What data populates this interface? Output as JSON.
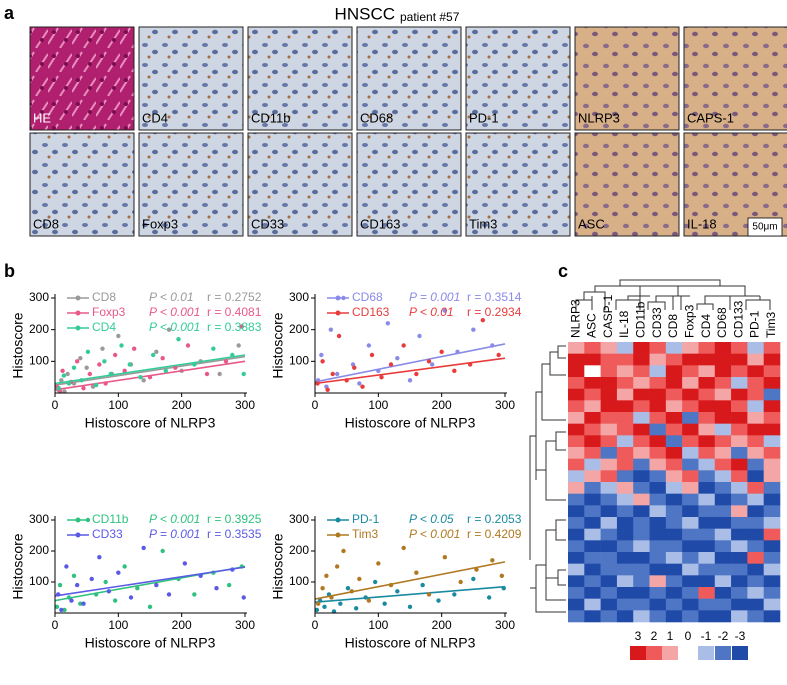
{
  "figure_labels": {
    "a": "a",
    "b": "b",
    "c": "c"
  },
  "panel_a": {
    "title": "HNSCC",
    "subtitle": "patient #57",
    "tiles": [
      "HE",
      "CD4",
      "CD11b",
      "CD68",
      "PD-1",
      "NLRP3",
      "CAPS-1",
      "CD8",
      "Foxp3",
      "CD33",
      "CD163",
      "Tim3",
      "ASC",
      "IL-18"
    ],
    "scale_bar": "50μm"
  },
  "chart_data": [
    {
      "type": "scatter",
      "x_label": "Histoscore of NLRP3",
      "y_label": "Histoscore",
      "xlim": [
        0,
        300
      ],
      "ylim": [
        0,
        300
      ],
      "xticks": [
        0,
        100,
        200,
        300
      ],
      "yticks": [
        100,
        200,
        300
      ],
      "series": [
        {
          "name": "CD8",
          "color": "#9a9a9a",
          "p_text": "P < 0.01",
          "r_text": "r = 0.2752",
          "x": [
            5,
            10,
            15,
            20,
            30,
            40,
            50,
            60,
            75,
            90,
            100,
            120,
            140,
            160,
            180,
            200,
            230,
            260,
            290
          ],
          "y": [
            10,
            40,
            5,
            60,
            30,
            110,
            80,
            20,
            140,
            60,
            180,
            90,
            40,
            130,
            200,
            70,
            100,
            60,
            150
          ],
          "fit": {
            "x": [
              0,
              300
            ],
            "y": [
              25,
              115
            ]
          }
        },
        {
          "name": "Foxp3",
          "color": "#e8588a",
          "p_text": "P < 0.001",
          "r_text": "r = 0.4081",
          "x": [
            3,
            8,
            12,
            25,
            35,
            45,
            55,
            70,
            80,
            95,
            110,
            125,
            150,
            170,
            190,
            210,
            240,
            270,
            295
          ],
          "y": [
            20,
            5,
            70,
            35,
            100,
            15,
            60,
            90,
            30,
            120,
            70,
            140,
            50,
            110,
            80,
            150,
            60,
            100,
            210
          ],
          "fit": {
            "x": [
              0,
              300
            ],
            "y": [
              10,
              100
            ]
          }
        },
        {
          "name": "CD4",
          "color": "#33cc99",
          "p_text": "P < 0.001",
          "r_text": "r = 0.3883",
          "x": [
            6,
            14,
            22,
            30,
            42,
            52,
            65,
            78,
            88,
            105,
            118,
            135,
            155,
            175,
            195,
            220,
            250,
            280,
            298
          ],
          "y": [
            15,
            55,
            30,
            80,
            40,
            130,
            25,
            100,
            60,
            150,
            90,
            50,
            120,
            70,
            170,
            90,
            140,
            120,
            60
          ],
          "fit": {
            "x": [
              0,
              300
            ],
            "y": [
              30,
              120
            ]
          }
        }
      ]
    },
    {
      "type": "scatter",
      "x_label": "Histoscore of NLRP3",
      "y_label": "Histoscore",
      "xlim": [
        0,
        300
      ],
      "ylim": [
        0,
        300
      ],
      "xticks": [
        0,
        100,
        200,
        300
      ],
      "yticks": [
        100,
        200,
        300
      ],
      "series": [
        {
          "name": "CD68",
          "color": "#8a8ae8",
          "p_text": "P = 0.001",
          "r_text": "r = 0.3514",
          "x": [
            5,
            10,
            18,
            25,
            35,
            45,
            60,
            70,
            85,
            100,
            115,
            130,
            150,
            165,
            185,
            205,
            225,
            250,
            280
          ],
          "y": [
            40,
            120,
            20,
            200,
            60,
            300,
            90,
            30,
            150,
            70,
            220,
            110,
            40,
            180,
            90,
            260,
            130,
            200,
            150
          ],
          "fit": {
            "x": [
              0,
              300
            ],
            "y": [
              35,
              155
            ]
          }
        },
        {
          "name": "CD163",
          "color": "#e83c3c",
          "p_text": "P < 0.01",
          "r_text": "r = 0.2934",
          "x": [
            4,
            12,
            20,
            28,
            38,
            50,
            62,
            75,
            90,
            105,
            120,
            140,
            160,
            180,
            200,
            220,
            245,
            265,
            290
          ],
          "y": [
            30,
            100,
            10,
            60,
            180,
            40,
            80,
            20,
            120,
            50,
            90,
            150,
            60,
            100,
            130,
            70,
            90,
            230,
            120
          ],
          "fit": {
            "x": [
              0,
              300
            ],
            "y": [
              30,
              110
            ]
          }
        }
      ]
    },
    {
      "type": "scatter",
      "x_label": "Histoscore of NLRP3",
      "y_label": "Histoscore",
      "xlim": [
        0,
        300
      ],
      "ylim": [
        0,
        300
      ],
      "xticks": [
        0,
        100,
        200,
        300
      ],
      "yticks": [
        100,
        200,
        300
      ],
      "series": [
        {
          "name": "CD11b",
          "color": "#2ec27e",
          "p_text": "P < 0.001",
          "r_text": "r = 0.3925",
          "x": [
            3,
            8,
            15,
            22,
            30,
            40,
            52,
            65,
            80,
            95,
            110,
            130,
            150,
            170,
            195,
            220,
            250,
            275,
            295
          ],
          "y": [
            20,
            90,
            10,
            50,
            120,
            30,
            300,
            60,
            100,
            40,
            150,
            80,
            20,
            200,
            110,
            60,
            130,
            90,
            150
          ],
          "fit": {
            "x": [
              0,
              300
            ],
            "y": [
              40,
              150
            ]
          }
        },
        {
          "name": "CD33",
          "color": "#5a5ae6",
          "p_text": "P = 0.001",
          "r_text": "r = 0.3535",
          "x": [
            5,
            10,
            18,
            26,
            35,
            45,
            58,
            70,
            85,
            100,
            120,
            140,
            160,
            180,
            205,
            230,
            255,
            280,
            298
          ],
          "y": [
            60,
            10,
            150,
            40,
            90,
            30,
            110,
            180,
            70,
            130,
            50,
            210,
            90,
            60,
            160,
            120,
            80,
            140,
            50
          ],
          "fit": {
            "x": [
              0,
              300
            ],
            "y": [
              55,
              148
            ]
          }
        }
      ]
    },
    {
      "type": "scatter",
      "x_label": "Histoscore of NLRP3",
      "y_label": "Histoscore",
      "xlim": [
        0,
        300
      ],
      "ylim": [
        0,
        300
      ],
      "xticks": [
        0,
        100,
        200,
        300
      ],
      "yticks": [
        100,
        200,
        300
      ],
      "series": [
        {
          "name": "PD-1",
          "color": "#1a8aa0",
          "p_text": "P < 0.05",
          "r_text": "r = 0.2053",
          "x": [
            3,
            8,
            15,
            22,
            30,
            40,
            52,
            65,
            80,
            95,
            110,
            130,
            150,
            170,
            195,
            220,
            250,
            275,
            298
          ],
          "y": [
            10,
            40,
            20,
            60,
            5,
            30,
            80,
            15,
            50,
            100,
            30,
            70,
            20,
            90,
            40,
            60,
            110,
            50,
            80
          ],
          "fit": {
            "x": [
              0,
              300
            ],
            "y": [
              35,
              85
            ]
          }
        },
        {
          "name": "Tim3",
          "color": "#b07820",
          "p_text": "P < 0.001",
          "r_text": "r = 0.4209",
          "x": [
            5,
            12,
            18,
            26,
            35,
            45,
            58,
            70,
            85,
            100,
            120,
            140,
            160,
            180,
            205,
            230,
            255,
            280,
            295
          ],
          "y": [
            30,
            80,
            120,
            50,
            150,
            200,
            70,
            110,
            40,
            160,
            90,
            210,
            130,
            60,
            180,
            100,
            140,
            170,
            120
          ],
          "fit": {
            "x": [
              0,
              300
            ],
            "y": [
              45,
              165
            ]
          }
        }
      ]
    },
    {
      "type": "heatmap",
      "columns": [
        "NLRP3",
        "ASC",
        "CASP-1",
        "IL-18",
        "CD11b",
        "CD33",
        "CD8",
        "Foxp3",
        "CD4",
        "CD68",
        "CD133",
        "PD-1",
        "Tim3"
      ],
      "colorbar_ticks": [
        3,
        2,
        1,
        0,
        -1,
        -2,
        -3
      ],
      "values": [
        [
          1,
          2,
          1,
          -1,
          3,
          2,
          -1,
          1,
          2,
          3,
          2,
          -1,
          2
        ],
        [
          3,
          3,
          2,
          2,
          3,
          1,
          2,
          3,
          3,
          3,
          3,
          1,
          3
        ],
        [
          3,
          0,
          2,
          1,
          2,
          -1,
          3,
          2,
          1,
          3,
          2,
          3,
          2
        ],
        [
          2,
          3,
          3,
          2,
          1,
          2,
          3,
          1,
          3,
          2,
          -1,
          2,
          3
        ],
        [
          3,
          2,
          3,
          1,
          3,
          3,
          2,
          3,
          2,
          1,
          3,
          2,
          -2
        ],
        [
          2,
          1,
          3,
          3,
          2,
          3,
          1,
          2,
          3,
          3,
          2,
          -1,
          3
        ],
        [
          1,
          3,
          2,
          2,
          -1,
          2,
          3,
          -2,
          2,
          3,
          3,
          1,
          2
        ],
        [
          3,
          2,
          1,
          2,
          3,
          -2,
          2,
          3,
          1,
          -1,
          2,
          3,
          3
        ],
        [
          2,
          3,
          2,
          -1,
          2,
          3,
          -2,
          2,
          3,
          2,
          1,
          2,
          -1
        ],
        [
          1,
          2,
          -2,
          2,
          1,
          2,
          3,
          -1,
          2,
          1,
          -2,
          1,
          2
        ],
        [
          2,
          -1,
          1,
          2,
          -2,
          1,
          2,
          -2,
          -1,
          2,
          3,
          -2,
          1
        ],
        [
          -1,
          1,
          2,
          -2,
          -3,
          -2,
          1,
          2,
          -2,
          -1,
          2,
          -3,
          1
        ],
        [
          1,
          -2,
          -1,
          1,
          -2,
          -3,
          -1,
          1,
          -3,
          -2,
          -1,
          2,
          -2
        ],
        [
          -2,
          -3,
          -2,
          -1,
          1,
          -2,
          -3,
          -2,
          -1,
          -3,
          -2,
          -1,
          -3
        ],
        [
          -3,
          -2,
          -3,
          -2,
          -3,
          -1,
          -2,
          -3,
          -2,
          -2,
          1,
          -3,
          -2
        ],
        [
          -2,
          -3,
          -1,
          -3,
          -2,
          -3,
          -2,
          -1,
          -3,
          -3,
          -2,
          -2,
          -1
        ],
        [
          -3,
          -1,
          -2,
          -3,
          -2,
          -3,
          -3,
          -2,
          -2,
          -1,
          -3,
          -3,
          2
        ],
        [
          -2,
          -3,
          -3,
          -2,
          -1,
          -2,
          -2,
          -3,
          -3,
          -2,
          -1,
          -2,
          -3
        ],
        [
          -3,
          -2,
          -2,
          -3,
          -3,
          -2,
          -1,
          -2,
          -1,
          -3,
          -3,
          2,
          -2
        ],
        [
          -1,
          -3,
          -2,
          -2,
          -2,
          -3,
          -3,
          -1,
          -2,
          -2,
          -2,
          -3,
          -1
        ],
        [
          -3,
          -2,
          -3,
          -1,
          -2,
          1,
          -2,
          -3,
          -3,
          -1,
          -3,
          -2,
          -3
        ],
        [
          -2,
          -3,
          -2,
          -3,
          -3,
          -2,
          -3,
          -2,
          2,
          -3,
          -2,
          -1,
          -2
        ],
        [
          -3,
          -1,
          -3,
          -2,
          -2,
          -3,
          -2,
          -3,
          -2,
          -2,
          -3,
          -3,
          -1
        ],
        [
          -2,
          -3,
          -2,
          -3,
          -1,
          -2,
          -3,
          -2,
          -3,
          -3,
          -1,
          -2,
          -3
        ]
      ]
    }
  ]
}
